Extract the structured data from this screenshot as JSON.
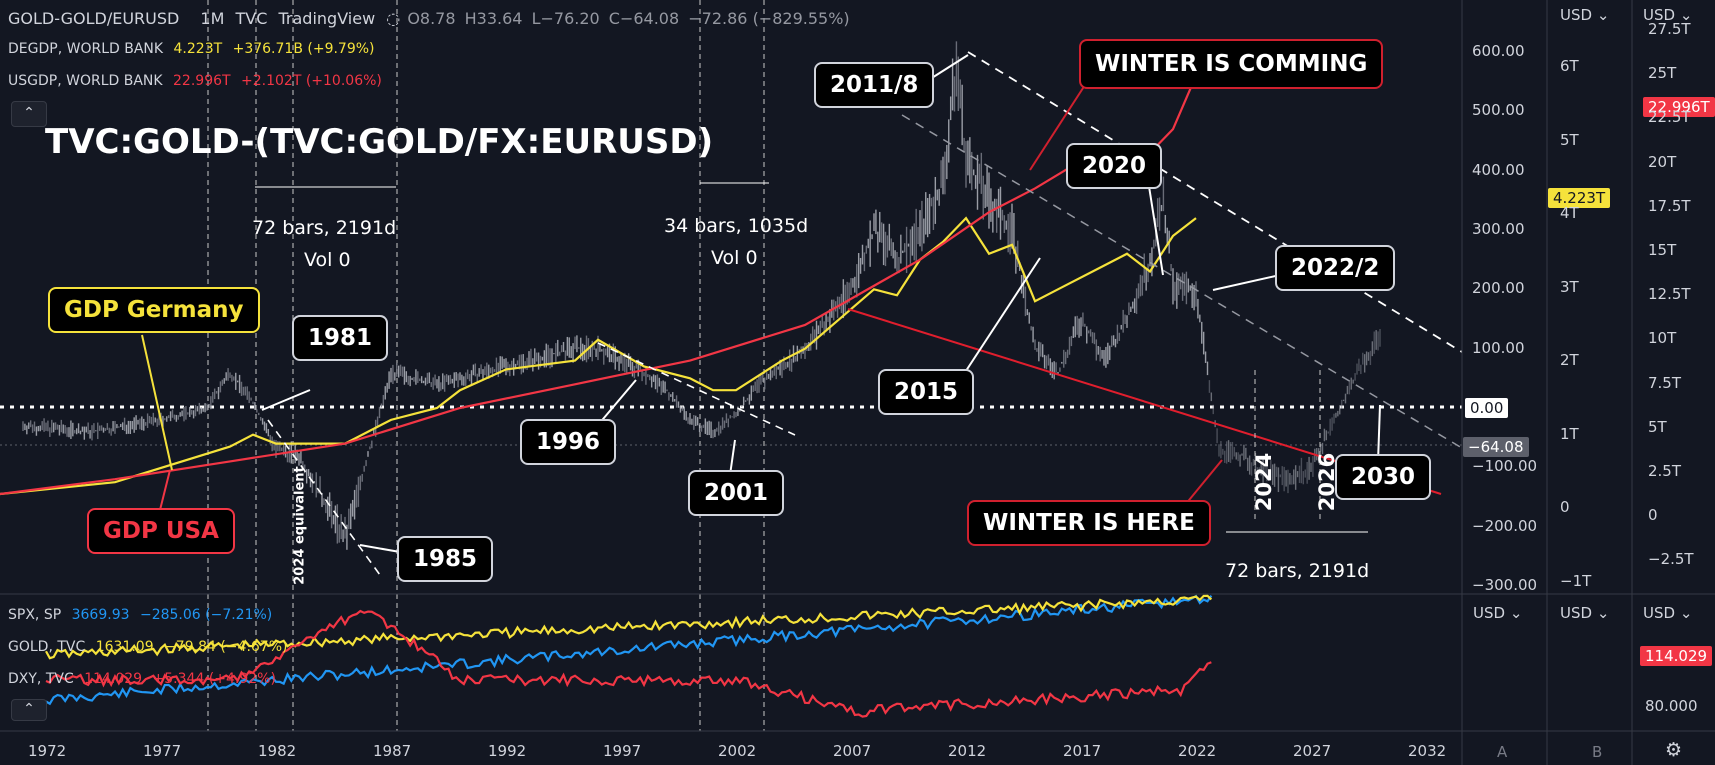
{
  "header": {
    "symbol": "GOLD-GOLD/EURUSD",
    "interval": "1M",
    "source": "TVC",
    "platform": "TradingView",
    "o": "O8.78",
    "h": "H33.64",
    "l": "L−76.20",
    "c": "C−64.08",
    "chg": "−72.86 (−829.55%)"
  },
  "legend_main": [
    {
      "name": "DEGDP, WORLD BANK",
      "value": "4.223T",
      "change": "+376.71B (+9.79%)",
      "color": "#f5e23b"
    },
    {
      "name": "USGDP, WORLD BANK",
      "value": "22.996T",
      "change": "+2.102T (+10.06%)",
      "color": "#f23645"
    }
  ],
  "legend_lower": [
    {
      "name": "SPX, SP",
      "value": "3669.93",
      "change": "−285.06 (−7.21%)",
      "color": "#2196f3"
    },
    {
      "name": "GOLD, TVC",
      "value": "1631.09",
      "change": "−79.84 (−4.67%)",
      "color": "#f5e23b"
    },
    {
      "name": "DXY, TVC",
      "value": "114.029",
      "change": "+5.344 (+4.92%)",
      "color": "#f23645"
    }
  ],
  "collapse_glyph": "⌃",
  "title_overlay": "TVC:GOLD-(TVC:GOLD/FX:EURUSD)",
  "annotations": {
    "y2011": "2011/8",
    "winter_coming": "WINTER IS COMMING",
    "y2020": "2020",
    "y2022": "2022/2",
    "gdp_germany": "GDP Germany",
    "y1981": "1981",
    "y2015": "2015",
    "y1996": "1996",
    "y2001": "2001",
    "y1985": "1985",
    "gdp_usa": "GDP USA",
    "winter_here": "WINTER IS HERE",
    "y2030": "2030",
    "v2024": "2024",
    "v2026": "2026",
    "equiv2024": "2024 equivalent"
  },
  "measures": {
    "m1_range": "72 bars, 2191d",
    "m1_vol": "Vol 0",
    "m2_range": "34 bars, 1035d",
    "m2_vol": "Vol 0",
    "m3_range": "72 bars, 2191d"
  },
  "right_axis": {
    "currency": "USD",
    "ticks": [
      "600.00",
      "500.00",
      "400.00",
      "300.00",
      "200.00",
      "100.00",
      "−100.00",
      "−200.00",
      "−300.00"
    ],
    "zero_tag": "0.00",
    "last_tag": "−64.08"
  },
  "axis_b": {
    "currency": "USD",
    "ticks": [
      "6T",
      "5T",
      "4T",
      "3T",
      "2T",
      "1T",
      "0",
      "−1T"
    ],
    "tag": "4.223T",
    "tag_color": "#f5e23b"
  },
  "axis_c": {
    "currency": "USD",
    "ticks": [
      "27.5T",
      "25T",
      "22.5T",
      "20T",
      "17.5T",
      "15T",
      "12.5T",
      "10T",
      "7.5T",
      "5T",
      "2.5T",
      "0",
      "−2.5T"
    ],
    "tag": "22.996T",
    "tag_color": "#f23645"
  },
  "lower_axis": {
    "currencies": [
      "USD",
      "USD",
      "USD"
    ],
    "tick": "80.000",
    "tag": "114.029",
    "tag_color": "#f23645"
  },
  "x_axis": {
    "labels": [
      "1972",
      "1977",
      "1982",
      "1987",
      "1992",
      "1997",
      "2002",
      "2007",
      "2012",
      "2017",
      "2022",
      "2027",
      "2032"
    ],
    "corner_labels": [
      "A",
      "B"
    ],
    "settings_icon": "gear-icon"
  },
  "chart_data": {
    "type": "line",
    "ylim": [
      -300,
      600
    ],
    "x_range": [
      1970.5,
      2032
    ],
    "series": [
      {
        "name": "GOLD-GOLD/EURUSD",
        "color": "#8a8e99",
        "x": [
          1971,
          1974,
          1977,
          1979,
          1980,
          1981,
          1982,
          1983,
          1984,
          1985,
          1986,
          1987,
          1989,
          1991,
          1993,
          1995,
          1996,
          1997,
          1998,
          1999,
          2000,
          2001,
          2002,
          2003,
          2004,
          2005,
          2006,
          2007,
          2008,
          2009,
          2010,
          2011,
          2011.6,
          2012,
          2013,
          2014,
          2015,
          2016,
          2017,
          2018,
          2019,
          2020,
          2020.6,
          2021,
          2022,
          2022.5,
          2023,
          2024,
          2025,
          2026,
          2027,
          2028,
          2029,
          2030
        ],
        "y": [
          -30,
          -40,
          -20,
          0,
          60,
          10,
          -70,
          -80,
          -150,
          -220,
          -80,
          60,
          40,
          60,
          80,
          100,
          100,
          80,
          60,
          30,
          -20,
          -40,
          -10,
          40,
          70,
          100,
          150,
          200,
          300,
          250,
          300,
          380,
          580,
          420,
          350,
          300,
          100,
          60,
          150,
          80,
          150,
          250,
          350,
          200,
          200,
          60,
          -70,
          -80,
          -110,
          -120,
          -100,
          -20,
          60,
          120
        ]
      },
      {
        "name": "GDP Germany",
        "color": "#f5e23b",
        "x": [
          1970,
          1975,
          1980,
          1981,
          1982,
          1985,
          1987,
          1989,
          1990,
          1992,
          1995,
          1996,
          1998,
          2000,
          2001,
          2002,
          2004,
          2005,
          2008,
          2009,
          2010,
          2011,
          2012,
          2013,
          2014,
          2015,
          2016,
          2018,
          2019,
          2020,
          2021,
          2022
        ],
        "y": [
          -145,
          -125,
          -65,
          -45,
          -60,
          -60,
          -20,
          0,
          30,
          65,
          80,
          115,
          70,
          50,
          30,
          30,
          80,
          100,
          200,
          190,
          250,
          280,
          320,
          260,
          275,
          180,
          200,
          240,
          260,
          230,
          290,
          320
        ]
      },
      {
        "name": "GDP USA",
        "color": "#f23645",
        "x": [
          1970,
          1975,
          1980,
          1985,
          1990,
          1995,
          2000,
          2005,
          2010,
          2013,
          2015,
          2018,
          2020,
          2021,
          2022
        ],
        "y": [
          -145,
          -120,
          -90,
          -60,
          0,
          40,
          80,
          140,
          250,
          330,
          370,
          440,
          430,
          470,
          560
        ]
      }
    ],
    "lower_series": [
      {
        "name": "SPX, SP",
        "color": "#2196f3"
      },
      {
        "name": "GOLD, TVC",
        "color": "#f5e23b"
      },
      {
        "name": "DXY, TVC",
        "color": "#f23645"
      }
    ]
  },
  "colors": {
    "bg": "#131722",
    "up": "#ffffff",
    "grid": "#2a2e39"
  }
}
